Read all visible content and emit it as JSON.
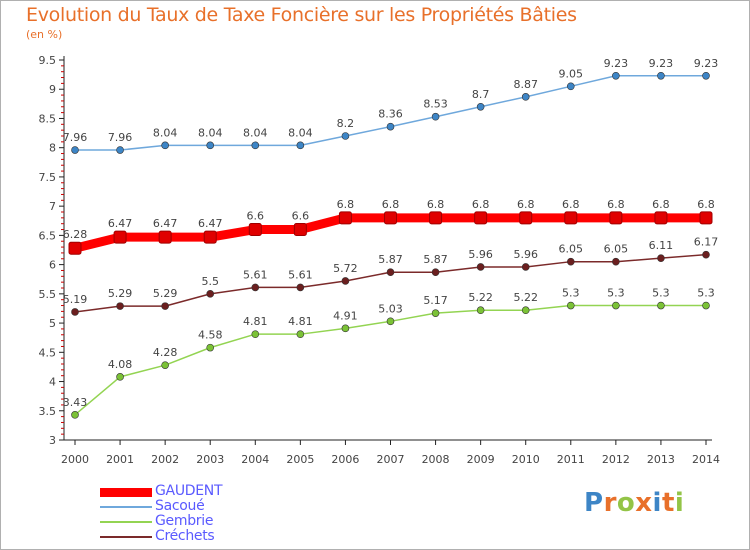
{
  "chart_data": {
    "type": "line",
    "title": "Evolution du Taux de Taxe Foncière sur les Propriétés Bâties",
    "subtitle": "(en %)",
    "x": [
      "2000",
      "2001",
      "2002",
      "2003",
      "2004",
      "2005",
      "2006",
      "2007",
      "2008",
      "2009",
      "2010",
      "2011",
      "2012",
      "2013",
      "2014"
    ],
    "yticks": [
      "3",
      "3.5",
      "4",
      "4.5",
      "5",
      "5.5",
      "6",
      "6.5",
      "7",
      "7.5",
      "8",
      "8.5",
      "9",
      "9.5"
    ],
    "ylim": [
      3,
      9.5
    ],
    "series": [
      {
        "key": "gaudent",
        "name": "GAUDENT",
        "color": "#ff0000",
        "marker_color": "#e00000",
        "legend_color": "#5a5aff",
        "bold": true,
        "values": [
          6.28,
          6.47,
          6.47,
          6.47,
          6.6,
          6.6,
          6.8,
          6.8,
          6.8,
          6.8,
          6.8,
          6.8,
          6.8,
          6.8,
          6.8
        ],
        "labels": [
          "6.28",
          "6.47",
          "6.47",
          "6.47",
          "6.6",
          "6.6",
          "6.8",
          "6.8",
          "6.8",
          "6.8",
          "6.8",
          "6.8",
          "6.8",
          "6.8",
          "6.8"
        ]
      },
      {
        "key": "sacoue",
        "name": "Sacoué",
        "color": "#6fa8dc",
        "marker_color": "#3d85c6",
        "legend_color": "#5a5aff",
        "bold": false,
        "values": [
          7.96,
          7.96,
          8.04,
          8.04,
          8.04,
          8.04,
          8.2,
          8.36,
          8.53,
          8.7,
          8.87,
          9.05,
          9.23,
          9.23,
          9.23
        ],
        "labels": [
          "7.96",
          "7.96",
          "8.04",
          "8.04",
          "8.04",
          "8.04",
          "8.2",
          "8.36",
          "8.53",
          "8.7",
          "8.87",
          "9.05",
          "9.23",
          "9.23",
          "9.23"
        ]
      },
      {
        "key": "gembrie",
        "name": "Gembrie",
        "color": "#93d452",
        "marker_color": "#7bc236",
        "legend_color": "#5a5aff",
        "bold": false,
        "values": [
          3.43,
          4.08,
          4.28,
          4.58,
          4.81,
          4.81,
          4.91,
          5.03,
          5.17,
          5.22,
          5.22,
          5.3,
          5.3,
          5.3,
          5.3
        ],
        "labels": [
          "3.43",
          "4.08",
          "4.28",
          "4.58",
          "4.81",
          "4.81",
          "4.91",
          "5.03",
          "5.17",
          "5.22",
          "5.22",
          "5.3",
          "5.3",
          "5.3",
          "5.3"
        ]
      },
      {
        "key": "crechets",
        "name": "Créchets",
        "color": "#7b2a2a",
        "marker_color": "#6b1f1f",
        "legend_color": "#5a5aff",
        "bold": false,
        "values": [
          5.19,
          5.29,
          5.29,
          5.5,
          5.61,
          5.61,
          5.72,
          5.87,
          5.87,
          5.96,
          5.96,
          6.05,
          6.05,
          6.11,
          6.17
        ],
        "labels": [
          "5.19",
          "5.29",
          "5.29",
          "5.5",
          "5.61",
          "5.61",
          "5.72",
          "5.87",
          "5.87",
          "5.96",
          "5.96",
          "6.05",
          "6.05",
          "6.11",
          "6.17"
        ]
      }
    ],
    "legend_position": "bottom-left",
    "grid": false
  },
  "logo": {
    "text": "Proxiti",
    "letters": [
      "P",
      "r",
      "o",
      "x",
      "i",
      "t",
      "i"
    ],
    "colors": [
      "#3d85c6",
      "#e8702a",
      "#93c447",
      "#e8702a",
      "#3d85c6",
      "#e8702a",
      "#93c447"
    ]
  }
}
